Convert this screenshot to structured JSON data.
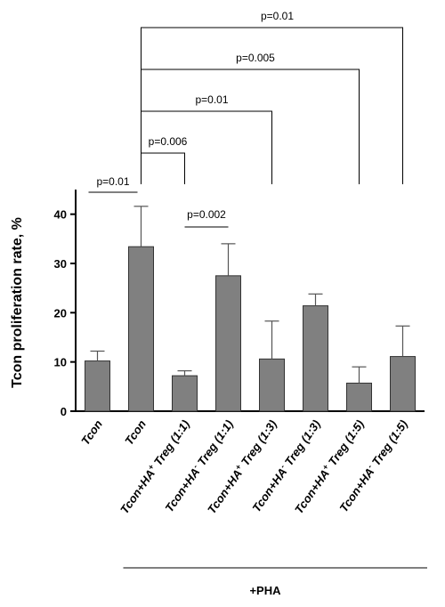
{
  "chart_data": {
    "type": "bar",
    "ylabel": "Tcon proliferation rate, %",
    "ylim": [
      0,
      45
    ],
    "yticks": [
      0,
      10,
      20,
      30,
      40
    ],
    "categories": [
      [
        "Tcon",
        "",
        "",
        ""
      ],
      [
        "Tcon",
        "",
        "",
        ""
      ],
      [
        "Tcon+HA",
        "+",
        " Treg (1:1)",
        ""
      ],
      [
        "Tcon+HA",
        "-",
        " Treg (1:1)",
        ""
      ],
      [
        "Tcon+HA",
        "+",
        " Treg (1:3)",
        ""
      ],
      [
        "Tcon+HA",
        "-",
        " Treg (1:3)",
        ""
      ],
      [
        "Tcon+HA",
        "+",
        " Treg (1:5)",
        ""
      ],
      [
        "Tcon+HA",
        "-",
        " Treg (1:5)",
        ""
      ]
    ],
    "values": [
      10.2,
      33.4,
      7.2,
      27.5,
      10.6,
      21.4,
      5.7,
      11.1
    ],
    "errors": [
      2.0,
      8.2,
      1.0,
      6.5,
      7.7,
      2.4,
      3.3,
      6.2
    ],
    "bar_color": "#808080",
    "bracket_label": "+PHA",
    "bracket_start_index": 1,
    "comparisons": [
      {
        "from": 0,
        "to": 1,
        "label": "p=0.01",
        "level": 0
      },
      {
        "from": 2,
        "to": 3,
        "label": "p=0.002",
        "level": "inner"
      },
      {
        "from": 1,
        "to": 2,
        "label": "p=0.006",
        "level": 1
      },
      {
        "from": 1,
        "to": 4,
        "label": "p=0.01",
        "level": 2
      },
      {
        "from": 1,
        "to": 6,
        "label": "p=0.005",
        "level": 3
      },
      {
        "from": 1,
        "to": 7,
        "label": "p=0.01",
        "level": 4
      }
    ]
  }
}
